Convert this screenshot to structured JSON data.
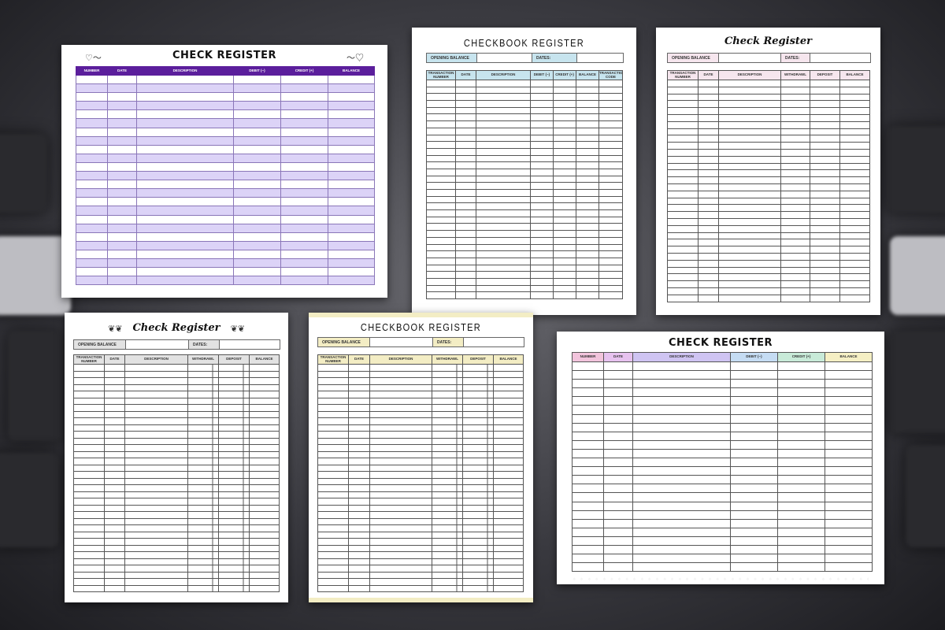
{
  "background": {
    "description_icon": "keyboard-background"
  },
  "pages": [
    {
      "id": "purple",
      "title": "CHECK REGISTER",
      "accent": "#5b1e9c",
      "stripe": "#dcd3f7",
      "columns": [
        "NUMBER",
        "DATE",
        "DESCRIPTION",
        "DEBIT (−)",
        "CREDIT (+)",
        "BALANCE"
      ],
      "ornament": "heart-swirl-icon"
    },
    {
      "id": "blue",
      "title": "CHECKBOOK REGISTER",
      "accent": "#c7e4ee",
      "opening_label": "OPENING BALANCE",
      "dates_label": "DATES:",
      "columns": [
        "TRANSACTION NUMBER",
        "DATE",
        "DESCRIPTION",
        "DEBIT (−)",
        "CREDIT (+)",
        "BALANCE",
        "TRANSACTION CODE"
      ]
    },
    {
      "id": "pink",
      "title": "Check Register",
      "accent": "#f6e6ee",
      "opening_label": "OPENING BALANCE",
      "dates_label": "DATES:",
      "columns": [
        "TRANSACTION NUMBER",
        "DATE",
        "DESCRIPTION",
        "WITHDRAWL",
        "DEPOSIT",
        "BALANCE"
      ]
    },
    {
      "id": "gray",
      "title": "Check Register",
      "accent": "#e2e2e2",
      "opening_label": "OPENING BALANCE",
      "dates_label": "DATES:",
      "columns": [
        "TRANSACTION NUMBER",
        "DATE",
        "DESCRIPTION",
        "WITHDRAWL",
        "DEPOSIT",
        "BALANCE"
      ],
      "ornament": "floral-branch-icon"
    },
    {
      "id": "cream",
      "title": "CHECKBOOK REGISTER",
      "accent": "#f3edc4",
      "opening_label": "OPENING BALANCE",
      "dates_label": "DATES:",
      "columns": [
        "TRANSACTION NUMBER",
        "DATE",
        "DESCRIPTION",
        "WITHDRAWL",
        "DEPOSIT",
        "BALANCE"
      ]
    },
    {
      "id": "multi",
      "title": "CHECK REGISTER",
      "columns": [
        "NUMBER",
        "DATE",
        "DESCRIPTION",
        "DEBIT (−)",
        "CREDIT (+)",
        "BALANCE"
      ],
      "column_colors": [
        "#f2c4dc",
        "#e7c2ef",
        "#cfc4f2",
        "#c5dcf3",
        "#c8ead8",
        "#f5efc4"
      ]
    }
  ]
}
